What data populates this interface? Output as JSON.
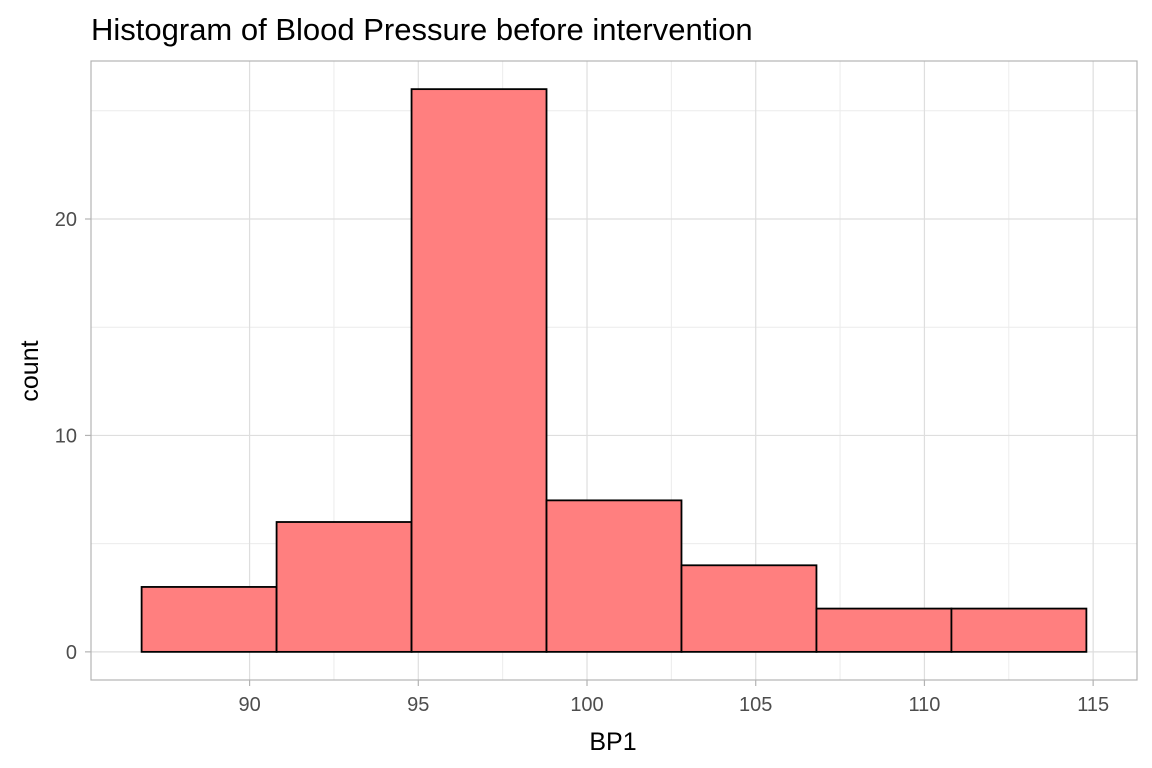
{
  "chart_data": {
    "type": "bar",
    "title": "Histogram of Blood Pressure before  intervention",
    "xlabel": "BP1",
    "ylabel": "count",
    "bins": [
      {
        "x_start": 86.8,
        "x_end": 90.8,
        "count": 3
      },
      {
        "x_start": 90.8,
        "x_end": 94.8,
        "count": 6
      },
      {
        "x_start": 94.8,
        "x_end": 98.8,
        "count": 26
      },
      {
        "x_start": 98.8,
        "x_end": 102.8,
        "count": 7
      },
      {
        "x_start": 102.8,
        "x_end": 106.8,
        "count": 4
      },
      {
        "x_start": 106.8,
        "x_end": 110.8,
        "count": 2
      },
      {
        "x_start": 110.8,
        "x_end": 114.8,
        "count": 2
      }
    ],
    "x_ticks": [
      90,
      95,
      100,
      105,
      110,
      115
    ],
    "y_ticks": [
      0,
      10,
      20
    ],
    "xlim": [
      85.3,
      116.3
    ],
    "ylim": [
      -1.3,
      27.3
    ],
    "grid": true,
    "legend": "none",
    "colors": {
      "bar_fill": "#ff7f7f",
      "bar_stroke": "#000000",
      "grid_major": "#dedede",
      "grid_minor": "#ececec",
      "panel_border": "#b3b3b3"
    }
  }
}
